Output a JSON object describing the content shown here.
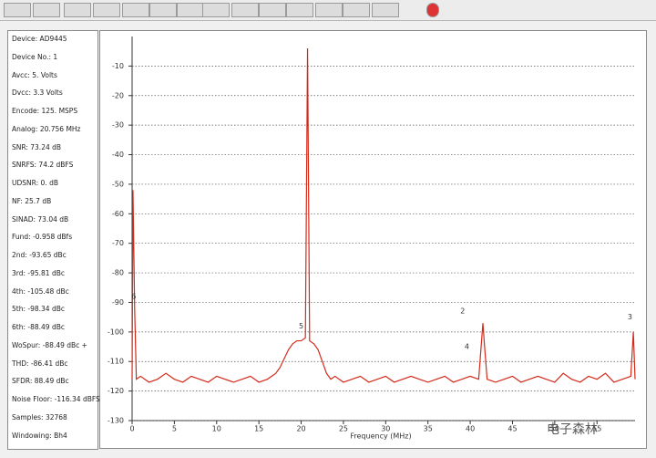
{
  "panel": [
    "Device: AD9445",
    "Device No.: 1",
    "Avcc: 5. Volts",
    "Dvcc: 3.3 Volts",
    "Encode: 125. MSPS",
    "Analog: 20.756 MHz",
    "SNR: 73.24 dB",
    "SNRFS: 74.2 dBFS",
    "UDSNR: 0. dB",
    "NF: 25.7 dB",
    "SINAD: 73.04 dB",
    "Fund: -0.958 dBfs",
    "2nd: -93.65 dBc",
    "3rd: -95.81 dBc",
    "4th: -105.48 dBc",
    "5th: -98.34 dBc",
    "6th: -88.49 dBc",
    "WoSpur: -88.49 dBc +",
    "THD: -86.41 dBc",
    "SFDR: 88.49 dBc",
    "Noise Floor: -116.34 dBFS",
    "Samples: 32768",
    "Windowing: Bh4"
  ],
  "watermark": "电子森林",
  "chart_data": {
    "type": "line",
    "xlabel": "Frequency (MHz)",
    "x": [
      0,
      0.1,
      0.3,
      0.5,
      1,
      2,
      3,
      4,
      5,
      6,
      7,
      8,
      9,
      10,
      11,
      12,
      13,
      14,
      15,
      16,
      17,
      17.5,
      18,
      18.5,
      19,
      19.5,
      20,
      20.5,
      20.756,
      21,
      21.5,
      22,
      22.5,
      23,
      23.5,
      24,
      25,
      26,
      27,
      28,
      29,
      30,
      31,
      32,
      33,
      34,
      35,
      36,
      37,
      38,
      39,
      40,
      41,
      41.5,
      41.7,
      42,
      43,
      44,
      45,
      46,
      47,
      48,
      49,
      50,
      51,
      52,
      53,
      54,
      55,
      56,
      57,
      58,
      59,
      59.3,
      59.5
    ],
    "series": [
      {
        "color": "#d42a1a",
        "values": [
          -116,
          -52,
          -92,
          -116,
          -115,
          -117,
          -116,
          -114,
          -116,
          -117,
          -115,
          -116,
          -117,
          -115,
          -116,
          -117,
          -116,
          -115,
          -117,
          -116,
          -114,
          -112,
          -109,
          -106,
          -104,
          -103,
          -103,
          -102,
          -4,
          -103,
          -104,
          -106,
          -110,
          -114,
          -116,
          -115,
          -117,
          -116,
          -115,
          -117,
          -116,
          -115,
          -117,
          -116,
          -115,
          -116,
          -117,
          -116,
          -115,
          -117,
          -116,
          -115,
          -116,
          -97,
          -105,
          -116,
          -117,
          -116,
          -115,
          -117,
          -116,
          -115,
          -116,
          -117,
          -114,
          -116,
          -117,
          -115,
          -116,
          -114,
          -117,
          -116,
          -115,
          -100,
          -116
        ]
      }
    ],
    "annotations": [
      {
        "text": "6",
        "x": 0.2,
        "y": -88
      },
      {
        "text": "5",
        "x": 20.0,
        "y": -98
      },
      {
        "text": "2",
        "x": 39.1,
        "y": -93
      },
      {
        "text": "4",
        "x": 39.6,
        "y": -105
      },
      {
        "text": "3",
        "x": 58.9,
        "y": -95
      }
    ],
    "xlim": [
      0,
      59.5
    ],
    "xticks": [
      0,
      5,
      10,
      15,
      20,
      25,
      30,
      35,
      40,
      45,
      50,
      55
    ],
    "ylim": [
      -130,
      0
    ],
    "yticks": [
      -10,
      -20,
      -30,
      -40,
      -50,
      -60,
      -70,
      -80,
      -90,
      -100,
      -110,
      -120,
      -130
    ],
    "grid": true
  }
}
